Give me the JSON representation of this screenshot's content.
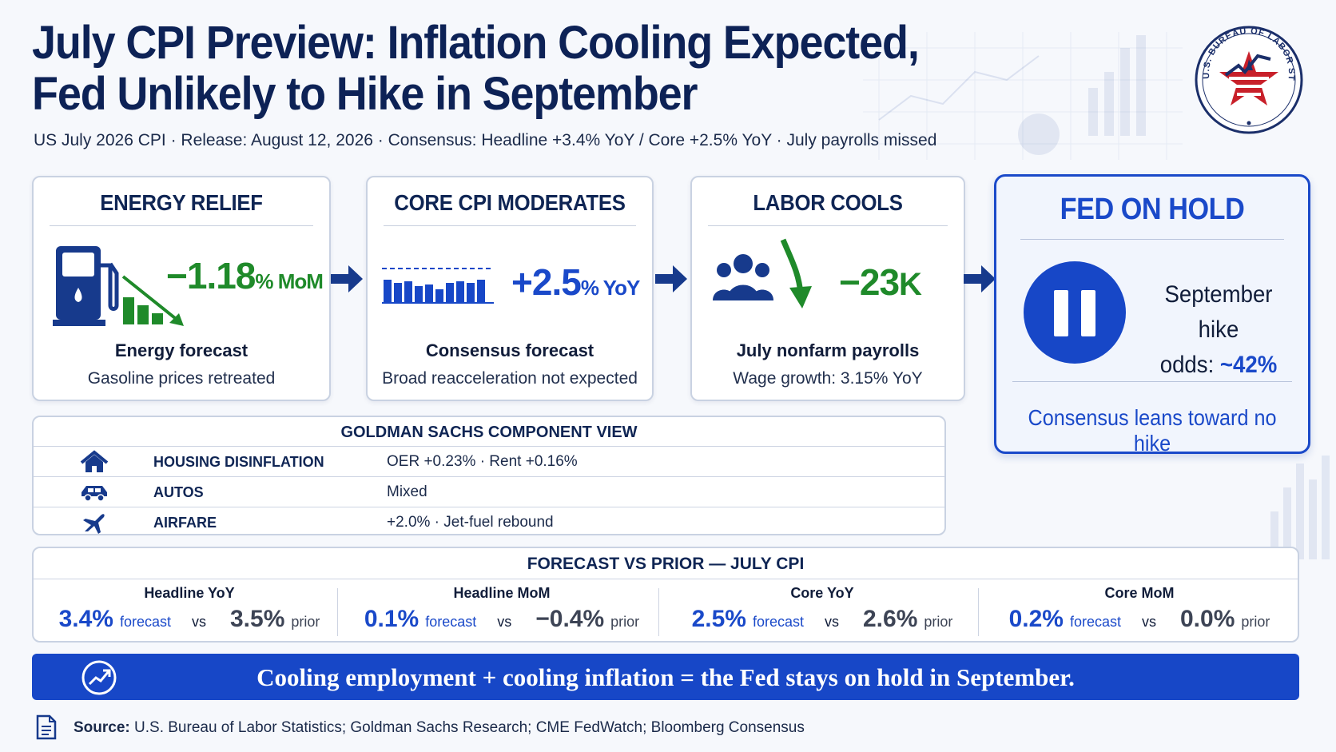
{
  "header": {
    "title_line1": "July CPI Preview: Inflation Cooling Expected,",
    "title_line2": "Fed Unlikely to Hike in September",
    "subtitle": "US July 2026 CPI · Release: August 12, 2026 · Consensus: Headline +3.4% YoY / Core +2.5% YoY · July payrolls missed",
    "seal_text": "U.S. BUREAU OF LABOR STATISTICS",
    "seal_icon": "bls-seal-icon"
  },
  "cards": [
    {
      "title": "ENERGY RELIEF",
      "metric_big": "−1.18",
      "metric_small": "% MoM",
      "metric_color": "#1f8a2a",
      "label": "Energy forecast",
      "desc": "Gasoline prices retreated",
      "icon": "gas-pump-icon"
    },
    {
      "title": "CORE CPI MODERATES",
      "metric_big": "+2.5",
      "metric_small": "% YoY",
      "metric_color": "#1a49c9",
      "label": "Consensus forecast",
      "desc": "Broad reacceleration not expected",
      "icon": "bar-chart-icon"
    },
    {
      "title": "LABOR COOLS",
      "metric_big": "−23",
      "metric_small": "K",
      "metric_color": "#1f8a2a",
      "label": "July nonfarm payrolls",
      "desc": "Wage growth: 3.15% YoY",
      "icon": "people-icon"
    }
  ],
  "fed": {
    "title": "FED ON HOLD",
    "odds_line1": "September hike",
    "odds_prefix": "odds: ",
    "odds_value": "~42%",
    "lean": "Consensus leans toward no hike",
    "icon": "pause-icon",
    "accent": "#1a49c9"
  },
  "gs": {
    "title": "GOLDMAN SACHS COMPONENT VIEW",
    "rows": [
      {
        "name": "HOUSING DISINFLATION",
        "value": "OER +0.23%  ·  Rent +0.16%",
        "icon": "house-icon"
      },
      {
        "name": "AUTOS",
        "value": "Mixed",
        "icon": "car-icon"
      },
      {
        "name": "AIRFARE",
        "value": "+2.0%  ·  Jet-fuel rebound",
        "icon": "airplane-icon"
      }
    ]
  },
  "fvp": {
    "title": "FORECAST VS PRIOR — JULY CPI",
    "forecast_word": "forecast",
    "vs_word": "vs",
    "prior_word": "prior",
    "cols": [
      {
        "label": "Headline YoY",
        "forecast": "3.4%",
        "prior": "3.5%"
      },
      {
        "label": "Headline MoM",
        "forecast": "0.1%",
        "prior": "−0.4%"
      },
      {
        "label": "Core YoY",
        "forecast": "2.5%",
        "prior": "2.6%"
      },
      {
        "label": "Core MoM",
        "forecast": "0.2%",
        "prior": "0.0%"
      }
    ]
  },
  "banner": {
    "text": "Cooling employment + cooling inflation = the Fed stays on hold in September.",
    "icon": "trend-up-circle-icon"
  },
  "source": {
    "label": "Source:",
    "text": " U.S. Bureau of Labor Statistics; Goldman Sachs Research; CME FedWatch; Bloomberg Consensus",
    "icon": "document-icon"
  },
  "colors": {
    "navy": "#0d2256",
    "blue": "#1747c7",
    "green": "#1f8a2a",
    "seal_red": "#c8202a"
  }
}
